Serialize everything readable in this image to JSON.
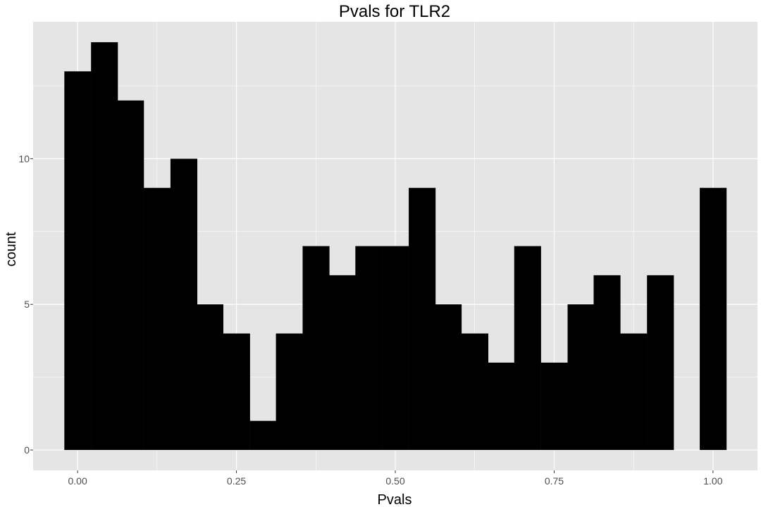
{
  "chart_data": {
    "type": "bar",
    "title": "Pvals for TLR2",
    "xlabel": "Pvals",
    "ylabel": "count",
    "bin_width": 0.0417,
    "bins": [
      {
        "x": 0.0,
        "count": 13
      },
      {
        "x": 0.042,
        "count": 14
      },
      {
        "x": 0.083,
        "count": 12
      },
      {
        "x": 0.125,
        "count": 9
      },
      {
        "x": 0.167,
        "count": 10
      },
      {
        "x": 0.208,
        "count": 5
      },
      {
        "x": 0.25,
        "count": 4
      },
      {
        "x": 0.292,
        "count": 1
      },
      {
        "x": 0.333,
        "count": 4
      },
      {
        "x": 0.375,
        "count": 7
      },
      {
        "x": 0.417,
        "count": 6
      },
      {
        "x": 0.458,
        "count": 7
      },
      {
        "x": 0.5,
        "count": 7
      },
      {
        "x": 0.542,
        "count": 9
      },
      {
        "x": 0.583,
        "count": 5
      },
      {
        "x": 0.625,
        "count": 4
      },
      {
        "x": 0.667,
        "count": 3
      },
      {
        "x": 0.708,
        "count": 7
      },
      {
        "x": 0.75,
        "count": 3
      },
      {
        "x": 0.792,
        "count": 5
      },
      {
        "x": 0.833,
        "count": 6
      },
      {
        "x": 0.875,
        "count": 4
      },
      {
        "x": 0.917,
        "count": 6
      },
      {
        "x": 0.958,
        "count": 0
      },
      {
        "x": 1.0,
        "count": 9
      }
    ],
    "x_ticks": [
      {
        "value": 0.0,
        "label": "0.00"
      },
      {
        "value": 0.25,
        "label": "0.25"
      },
      {
        "value": 0.5,
        "label": "0.50"
      },
      {
        "value": 0.75,
        "label": "0.75"
      },
      {
        "value": 1.0,
        "label": "1.00"
      }
    ],
    "y_ticks": [
      {
        "value": 0,
        "label": "0"
      },
      {
        "value": 5,
        "label": "5"
      },
      {
        "value": 10,
        "label": "10"
      }
    ],
    "xlim": [
      -0.07,
      1.07
    ],
    "ylim": [
      -0.7,
      14.7
    ],
    "grid": true,
    "legend": "none",
    "colors": {
      "panel_background": "#e5e5e5",
      "grid_major": "#ffffff",
      "bar_fill": "#000000",
      "tick_text": "#4d4d4d"
    }
  }
}
